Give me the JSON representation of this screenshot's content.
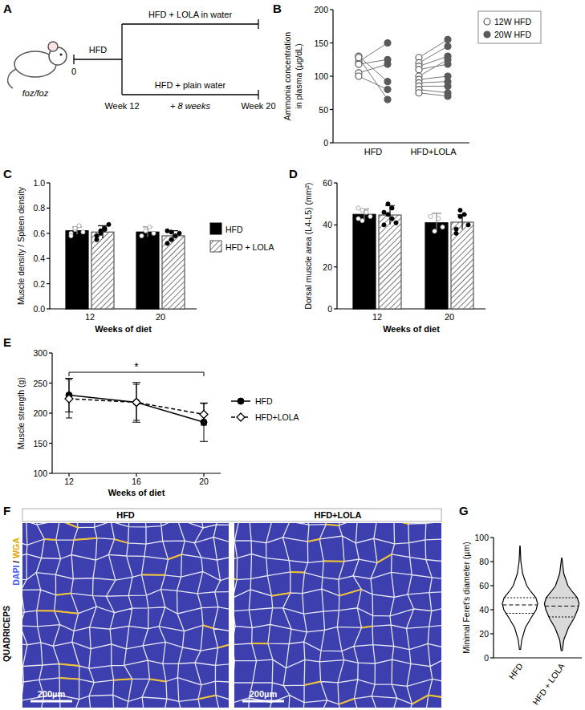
{
  "panel_labels": [
    "A",
    "B",
    "C",
    "D",
    "E",
    "F",
    "G"
  ],
  "diagram": {
    "animal": "foz/foz",
    "start": "0",
    "diet": "HFD",
    "arms": [
      "HFD + LOLA in water",
      "HFD + plain water"
    ],
    "branch_week": "Week 12",
    "duration": "+ 8 weeks",
    "end_week": "Week 20"
  },
  "micrograph": {
    "tissue": "QUADRICEPS",
    "stain": [
      "DAPI",
      "/",
      "WGA"
    ],
    "panels": [
      "HFD",
      "HFD+LOLA"
    ],
    "scale_bar": "200µm"
  },
  "chart_data": [
    {
      "type": "scatter",
      "y_label": [
        "Ammonia concentration",
        "in plasma (µg/dL)"
      ],
      "categories": [
        "HFD",
        "HFD+LOLA"
      ],
      "ylim": [
        0,
        200
      ],
      "yticks": [
        0,
        50,
        100,
        150,
        200
      ],
      "legend": "right",
      "series": [
        {
          "name": "12W HFD",
          "color": "#5a5a5a",
          "marker": "open",
          "values": [
            [
              122,
              118,
              105,
              130,
              100,
              128
            ],
            [
              128,
              120,
              115,
              110,
              100,
              95,
              90,
              85,
              80,
              75
            ]
          ]
        },
        {
          "name": "20W HFD",
          "color": "#5a5a5a",
          "marker": "filled",
          "values": [
            [
              150,
              125,
              118,
              92,
              80,
              65
            ],
            [
              155,
              145,
              130,
              118,
              125,
              100,
              92,
              85,
              75,
              70
            ]
          ]
        }
      ]
    },
    {
      "type": "bar",
      "y_label": "Muscle density / Spleen density",
      "x_label": "Weeks of diet",
      "categories": [
        "12",
        "20"
      ],
      "ylim": [
        0,
        1
      ],
      "yticks": [
        {
          "value": 0,
          "label": "0.0"
        },
        {
          "value": 0.2,
          "label": "0.2"
        },
        {
          "value": 0.4,
          "label": "0.4"
        },
        {
          "value": 0.6,
          "label": "0.6"
        },
        {
          "value": 0.8,
          "label": "0.8"
        },
        {
          "value": 1,
          "label": "1.0"
        }
      ],
      "legend": "right",
      "series": [
        {
          "name": "HFD",
          "color": "#000000",
          "values": [
            0.62,
            0.61
          ],
          "errors": [
            0.03,
            0.04
          ],
          "points": [
            [
              0.6,
              0.63,
              0.66,
              0.61,
              0.58,
              0.64
            ],
            [
              0.58,
              0.62,
              0.65,
              0.6
            ]
          ]
        },
        {
          "name": "HFD + LOLA",
          "color": "#555555",
          "values": [
            0.61,
            0.58
          ],
          "errors": [
            0.05,
            0.04
          ],
          "points": [
            [
              0.55,
              0.6,
              0.63,
              0.67,
              0.58,
              0.62,
              0.64
            ],
            [
              0.52,
              0.55,
              0.58,
              0.6,
              0.62,
              0.61
            ]
          ]
        }
      ]
    },
    {
      "type": "bar",
      "y_label": "Dorsal muscle area (L4-L5) (mm²)",
      "x_label": "Weeks of diet",
      "categories": [
        "12",
        "20"
      ],
      "ylim": [
        0,
        60
      ],
      "yticks": [
        0,
        20,
        40,
        60
      ],
      "series": [
        {
          "name": "HFD",
          "color": "#000000",
          "values": [
            45,
            41
          ],
          "errors": [
            2.5,
            4.5
          ],
          "points": [
            [
              43,
              47,
              46,
              44,
              48,
              42
            ],
            [
              44,
              37,
              43,
              39
            ]
          ]
        },
        {
          "name": "HFD + LOLA",
          "color": "#555555",
          "values": [
            44.7,
            41.3
          ],
          "errors": [
            4.5,
            3.5
          ],
          "points": [
            [
              40,
              45,
              48,
              41,
              46,
              50,
              43
            ],
            [
              36,
              44,
              45,
              40,
              38,
              47
            ]
          ]
        }
      ]
    },
    {
      "type": "line",
      "y_label": "Muscle strength (g)",
      "x_label": "Weeks of diet",
      "x": [
        12,
        16,
        20
      ],
      "xlim": [
        11,
        21
      ],
      "xticks": [
        12,
        16,
        20
      ],
      "ylim": [
        100,
        300
      ],
      "yticks": [
        100,
        150,
        200,
        250,
        300
      ],
      "legend": "right",
      "series": [
        {
          "name": "HFD",
          "color": "#000000",
          "marker": "circle",
          "line_style": "solid",
          "values": [
            230,
            218,
            185
          ],
          "errors": [
            28,
            33,
            32
          ]
        },
        {
          "name": "HFD+LOLA",
          "color": "#000000",
          "marker": "diamond",
          "line_style": "dashed",
          "values": [
            224,
            218,
            198
          ],
          "errors": [
            32,
            30,
            18
          ]
        }
      ],
      "annotations": [
        {
          "text": "*",
          "x": [
            12,
            20
          ],
          "y": 268
        }
      ]
    },
    {
      "type": "violin",
      "y_label": "Minimal Feret's diameter (µm)",
      "categories": [
        "HFD",
        "HFD + LOLA"
      ],
      "ylim": [
        0,
        100
      ],
      "yticks": [
        0,
        20,
        40,
        60,
        80,
        100
      ],
      "colors": [
        "#ffffff",
        "#d9d9d9"
      ],
      "violins": [
        {
          "min": 7,
          "q1": 37,
          "median": 44,
          "q3": 50,
          "max": 93,
          "profile_y": [
            7,
            15,
            25,
            33,
            40,
            45,
            50,
            55,
            60,
            70,
            80,
            93
          ],
          "density": [
            0.03,
            0.1,
            0.3,
            0.62,
            0.92,
            1.0,
            0.9,
            0.62,
            0.38,
            0.15,
            0.05,
            0.01
          ]
        },
        {
          "min": 6,
          "q1": 34,
          "median": 43,
          "q3": 50,
          "max": 83,
          "profile_y": [
            6,
            15,
            25,
            33,
            40,
            45,
            50,
            55,
            60,
            70,
            83
          ],
          "density": [
            0.03,
            0.12,
            0.38,
            0.7,
            0.9,
            0.98,
            0.88,
            0.6,
            0.35,
            0.12,
            0.01
          ]
        }
      ]
    }
  ]
}
